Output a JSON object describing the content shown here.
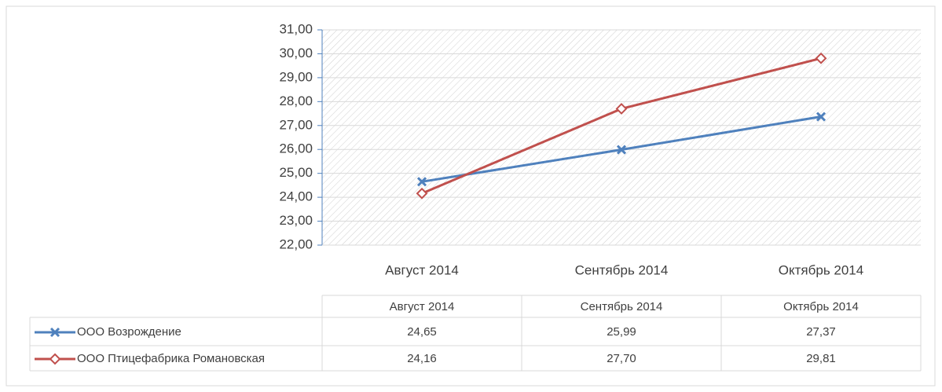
{
  "chart_data": {
    "type": "line",
    "categories": [
      "Август 2014",
      "Сентябрь 2014",
      "Октябрь 2014"
    ],
    "series": [
      {
        "name": "ООО Возрождение",
        "color": "#4f81bd",
        "marker": "x",
        "values": [
          24.65,
          25.99,
          27.37
        ],
        "value_labels": [
          "24,65",
          "25,99",
          "27,37"
        ]
      },
      {
        "name": "ООО Птицефабрика Романовская",
        "color": "#c0504d",
        "marker": "diamond",
        "values": [
          24.16,
          27.7,
          29.81
        ],
        "value_labels": [
          "24,16",
          "27,70",
          "29,81"
        ]
      }
    ],
    "ylim": [
      22,
      31
    ],
    "yticks": [
      {
        "value": 22,
        "label": "22,00"
      },
      {
        "value": 23,
        "label": "23,00"
      },
      {
        "value": 24,
        "label": "24,00"
      },
      {
        "value": 25,
        "label": "25,00"
      },
      {
        "value": 26,
        "label": "26,00"
      },
      {
        "value": 27,
        "label": "27,00"
      },
      {
        "value": 28,
        "label": "28,00"
      },
      {
        "value": 29,
        "label": "29,00"
      },
      {
        "value": 30,
        "label": "30,00"
      },
      {
        "value": 31,
        "label": "31,00"
      }
    ],
    "grid": true,
    "data_table": true
  }
}
